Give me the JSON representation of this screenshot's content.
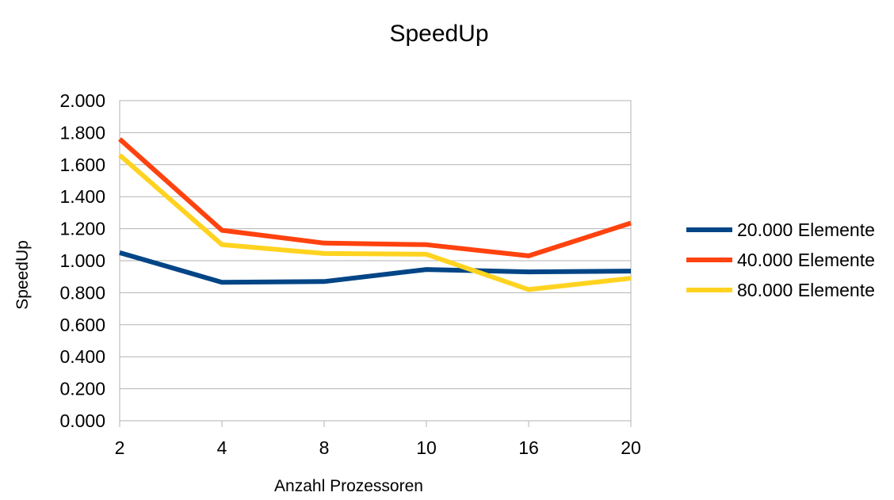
{
  "chart_data": {
    "type": "line",
    "title": "SpeedUp",
    "xlabel": "Anzahl Prozessoren",
    "ylabel": "SpeedUp",
    "categories": [
      "2",
      "4",
      "8",
      "10",
      "16",
      "20"
    ],
    "ylim": [
      0,
      2
    ],
    "yticks": [
      {
        "value": 0.0,
        "label": "0.000"
      },
      {
        "value": 0.2,
        "label": "0.200"
      },
      {
        "value": 0.4,
        "label": "0.400"
      },
      {
        "value": 0.6,
        "label": "0.600"
      },
      {
        "value": 0.8,
        "label": "0.800"
      },
      {
        "value": 1.0,
        "label": "1.000"
      },
      {
        "value": 1.2,
        "label": "1.200"
      },
      {
        "value": 1.4,
        "label": "1.400"
      },
      {
        "value": 1.6,
        "label": "1.600"
      },
      {
        "value": 1.8,
        "label": "1.800"
      },
      {
        "value": 2.0,
        "label": "2.000"
      }
    ],
    "grid": true,
    "legend_position": "right",
    "series": [
      {
        "name": "20.000 Elemente",
        "color": "#004586",
        "values": [
          1.05,
          0.865,
          0.87,
          0.945,
          0.93,
          0.935
        ]
      },
      {
        "name": "40.000 Elemente",
        "color": "#ff420e",
        "values": [
          1.76,
          1.19,
          1.11,
          1.1,
          1.03,
          1.235
        ]
      },
      {
        "name": "80.000 Elemente",
        "color": "#ffd320",
        "values": [
          1.66,
          1.1,
          1.045,
          1.04,
          0.82,
          0.89
        ]
      }
    ]
  }
}
